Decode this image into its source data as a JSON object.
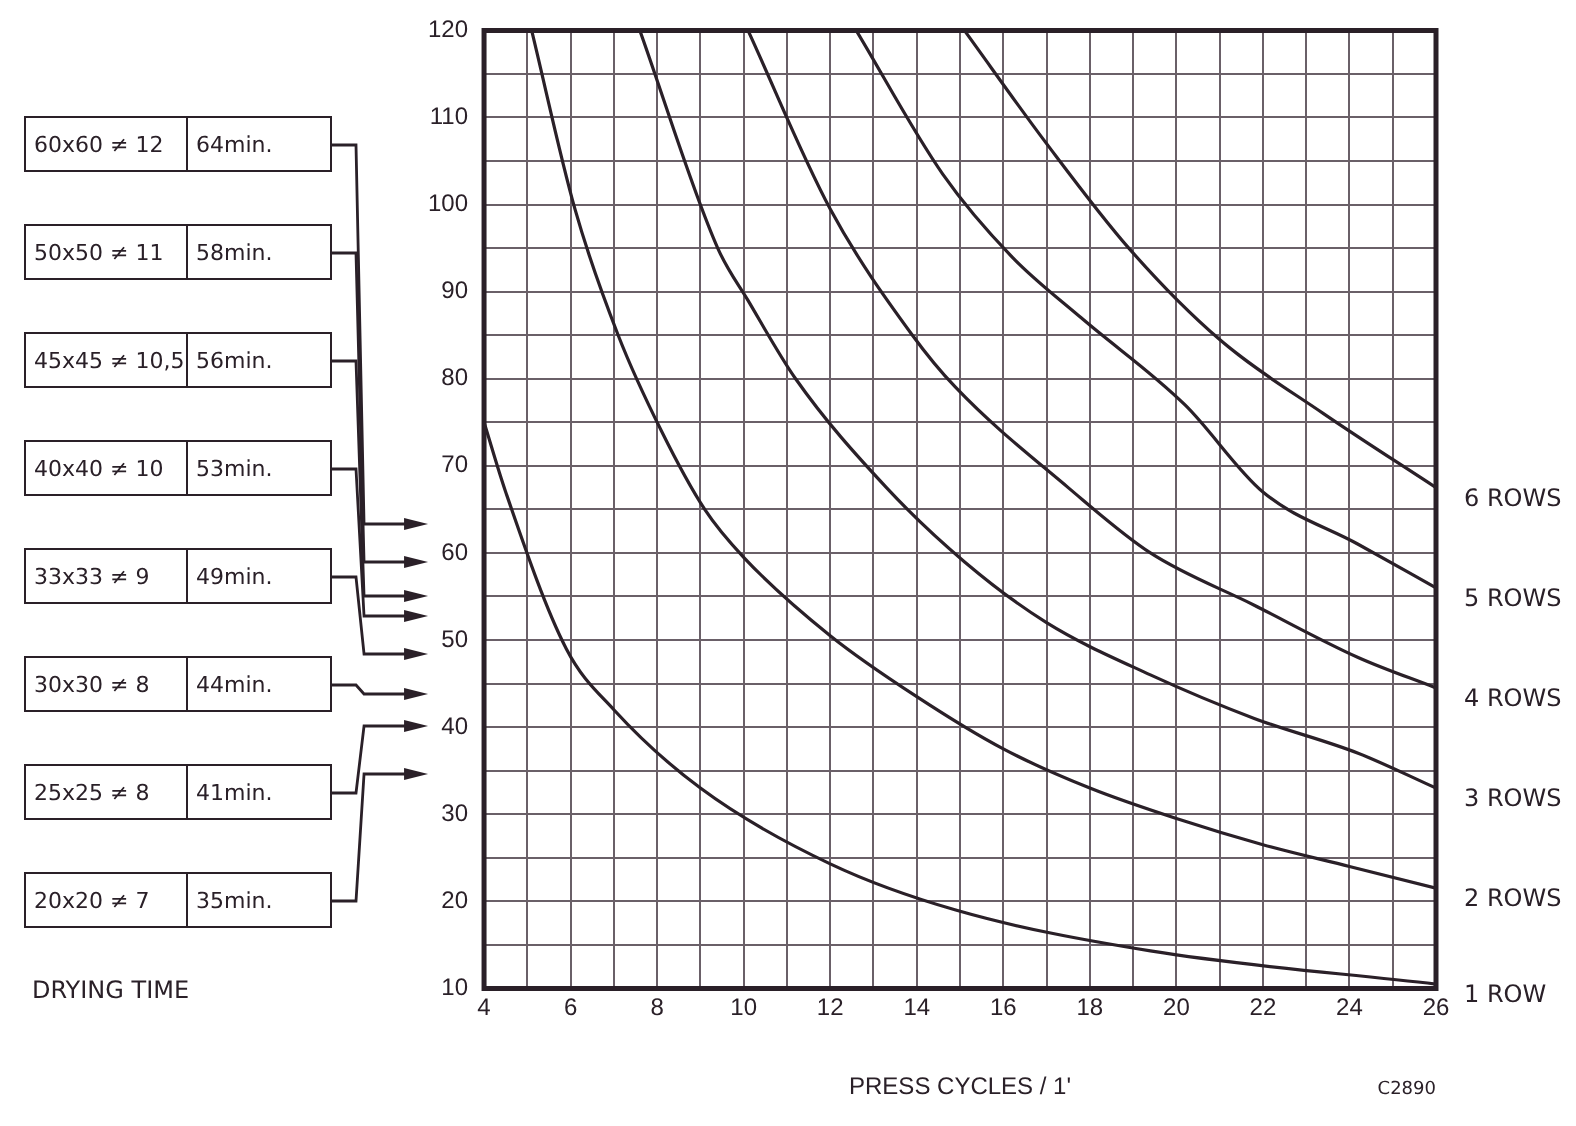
{
  "chart_data": {
    "type": "line",
    "xlabel": "PRESS CYCLES / 1'",
    "xlim": [
      4,
      26
    ],
    "ylim": [
      10,
      120
    ],
    "xticks": [
      4,
      {
        "value": 5,
        "label": null
      },
      6,
      {
        "value": 7,
        "label": null
      },
      8,
      {
        "value": 9,
        "label": null
      },
      10,
      {
        "value": 11,
        "label": null
      },
      12,
      {
        "value": 13,
        "label": null
      },
      14,
      {
        "value": 15,
        "label": null
      },
      16,
      {
        "value": 17,
        "label": null
      },
      18,
      {
        "value": 19,
        "label": null
      },
      20,
      {
        "value": 21,
        "label": null
      },
      22,
      {
        "value": 23,
        "label": null
      },
      24,
      {
        "value": 25,
        "label": null
      },
      26
    ],
    "yticks": [
      10,
      {
        "value": 15,
        "label": null
      },
      20,
      {
        "value": 25,
        "label": null
      },
      30,
      {
        "value": 35,
        "label": null
      },
      40,
      {
        "value": 45,
        "label": null
      },
      50,
      {
        "value": 55,
        "label": null
      },
      60,
      {
        "value": 65,
        "label": null
      },
      70,
      {
        "value": 75,
        "label": null
      },
      80,
      {
        "value": 85,
        "label": null
      },
      90,
      {
        "value": 95,
        "label": null
      },
      100,
      {
        "value": 105,
        "label": null
      },
      110,
      {
        "value": 115,
        "label": null
      },
      120
    ],
    "grid": true,
    "marker": "none",
    "line_style": "solid",
    "legend": false,
    "series": [
      {
        "name": "1 ROW",
        "color": "#2a2028",
        "x": [
          4,
          4.5,
          5.9,
          7,
          9,
          12,
          14.9,
          19.4,
          26
        ],
        "values": [
          75,
          67,
          49,
          42,
          33,
          24.3,
          19,
          14.3,
          10.5
        ]
      },
      {
        "name": "2 ROWS",
        "color": "#2a2028",
        "x": [
          5.1,
          6.1,
          7.1,
          8.1,
          9.1,
          10,
          12,
          14,
          16,
          18,
          20,
          22,
          24,
          26
        ],
        "values": [
          120,
          99.5,
          85,
          74,
          65,
          59.5,
          50.5,
          43.5,
          37.5,
          33,
          29.5,
          26.5,
          24,
          21.5
        ]
      },
      {
        "name": "3 ROWS",
        "color": "#2a2028",
        "x": [
          7.6,
          9.4,
          10.1,
          11.2,
          13.3,
          15.1,
          17,
          19.4,
          21.8,
          24.2,
          26
        ],
        "values": [
          120,
          95,
          89,
          80,
          67.5,
          59,
          52,
          46,
          41,
          37,
          33
        ]
      },
      {
        "name": "4 ROWS",
        "color": "#2a2028",
        "x": [
          10.1,
          12,
          13.9,
          14.9,
          17.5,
          19.4,
          21.8,
          24.2,
          26
        ],
        "values": [
          120,
          99.5,
          85,
          79,
          67.5,
          60,
          54,
          48,
          44.5
        ]
      },
      {
        "name": "5 ROWS",
        "color": "#2a2028",
        "x": [
          12.6,
          14.6,
          16.2,
          17.8,
          20.2,
          22,
          24.2,
          26
        ],
        "values": [
          120,
          103.5,
          94,
          87,
          77,
          67,
          61,
          56
        ]
      },
      {
        "name": "6 ROWS",
        "color": "#2a2028",
        "x": [
          15.1,
          17,
          18.9,
          21,
          23.4,
          26
        ],
        "values": [
          120,
          107,
          95,
          84.5,
          76,
          67.5
        ]
      }
    ],
    "annotations": [
      "60x60 ≠ 12",
      "64min.",
      "50x50 ≠ 11",
      "58min.",
      "45x45 ≠ 10,5",
      "56min.",
      "40x40 ≠ 10",
      "53min.",
      "33x33 ≠ 9",
      "49min.",
      "30x30 ≠ 8",
      "44min.",
      "25x25 ≠ 8",
      "41min.",
      "20x20 ≠ 7",
      "35min.",
      "DRYING TIME",
      "C2890"
    ]
  }
}
